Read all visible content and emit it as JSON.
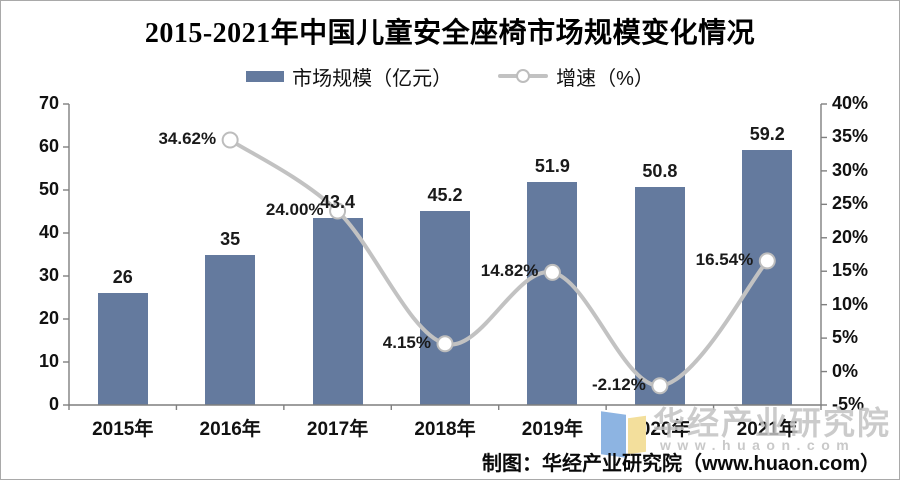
{
  "title": "2015-2021年中国儿童安全座椅市场规模变化情况",
  "legend": [
    {
      "label": "市场规模（亿元）",
      "marker": "bar-swatch",
      "color": "#647A9E"
    },
    {
      "label": "增速（%）",
      "marker": "line-with-circle-swatch",
      "color": "#C2C2C2"
    }
  ],
  "chart_data": {
    "type": "bar",
    "subtype": "combo bar+line, dual axis",
    "categories": [
      "2015年",
      "2016年",
      "2017年",
      "2018年",
      "2019年",
      "2020年",
      "2021年"
    ],
    "series": [
      {
        "name": "市场规模（亿元）",
        "type": "bar",
        "axis": "left",
        "color": "#647A9E",
        "values": [
          26,
          35,
          43.4,
          45.2,
          51.9,
          50.8,
          59.2
        ],
        "labels": [
          "26",
          "35",
          "43.4",
          "45.2",
          "51.9",
          "50.8",
          "59.2"
        ]
      },
      {
        "name": "增速（%）",
        "type": "line",
        "axis": "right",
        "color": "#C2C2C2",
        "marker": {
          "fill": "#ffffff",
          "stroke": "#BDBDBD"
        },
        "values": [
          null,
          34.62,
          24.0,
          4.15,
          14.82,
          -2.12,
          16.54
        ],
        "labels": [
          "",
          "34.62%",
          "24.00%",
          "4.15%",
          "14.82%",
          "-2.12%",
          "16.54%"
        ]
      }
    ],
    "left_axis": {
      "min": 0,
      "max": 70,
      "step": 10
    },
    "right_axis": {
      "min": -5,
      "max": 40,
      "step": 5,
      "suffix": "%"
    },
    "grid": false,
    "legend_position": "top",
    "axis_color": "#7f7f7f"
  },
  "watermark": {
    "brand": "华经产业研究院",
    "url": "www.huaon.com",
    "logo": "huaon-open-book-logo"
  },
  "credit": "制图：华经产业研究院（www.huaon.com）"
}
